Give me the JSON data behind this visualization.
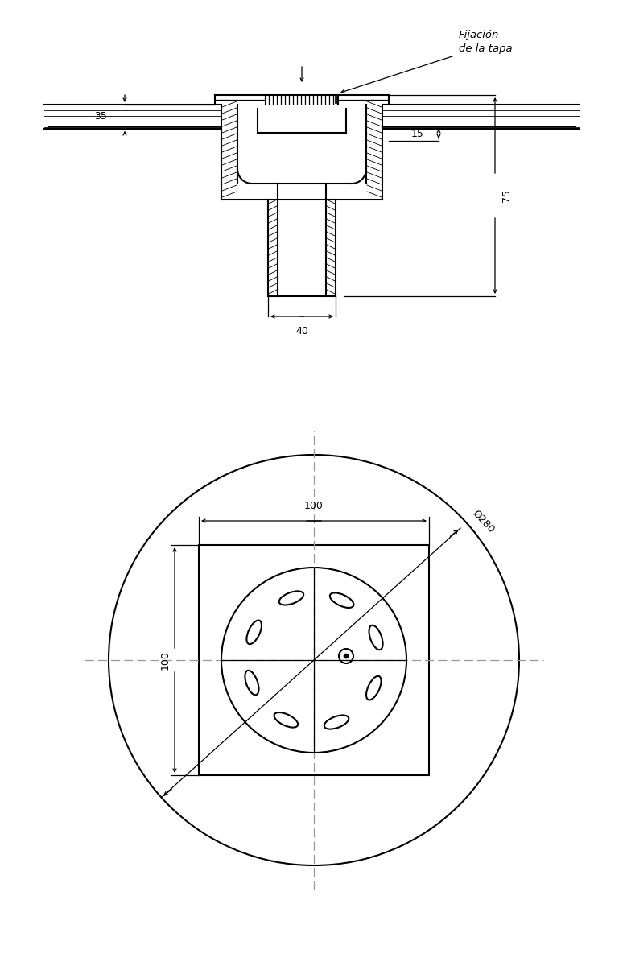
{
  "bg_color": "#ffffff",
  "lc": "#000000",
  "fig_width": 7.79,
  "fig_height": 12.0,
  "fijacion_line1": "Fijación",
  "fijacion_line2": "de la tapa",
  "dim_35": "35",
  "dim_75": "75",
  "dim_15": "15",
  "dim_40": "40",
  "dim_100w": "100",
  "dim_100h": "100",
  "dim_280": "Ø280"
}
